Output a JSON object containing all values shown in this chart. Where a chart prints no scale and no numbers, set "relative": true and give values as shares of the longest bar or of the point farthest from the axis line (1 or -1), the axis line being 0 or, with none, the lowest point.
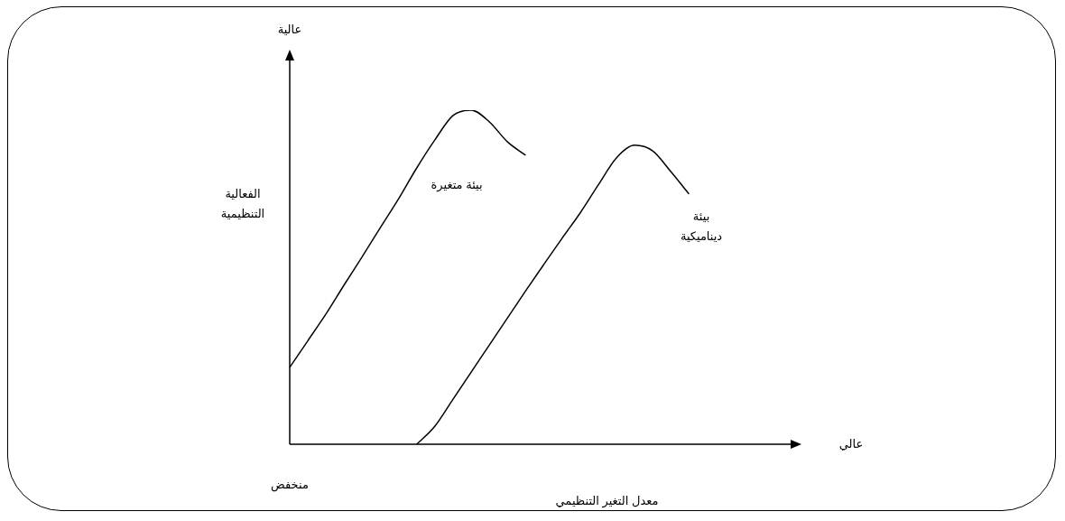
{
  "chart_data": {
    "type": "line",
    "relative": true,
    "xlabel": "معدل التغير التنظيمي",
    "ylabel": "الفعالية التنظيمية",
    "annotations": [
      "عالية",
      "منخفض",
      "عالي"
    ],
    "legend": false,
    "line_style": "solid",
    "categories": [
      null,
      null,
      null,
      null,
      null,
      null,
      null,
      null,
      null,
      null,
      null,
      null,
      null,
      null,
      null,
      null,
      null,
      null,
      null,
      null,
      null,
      null,
      null,
      null,
      null,
      null,
      null,
      null,
      null
    ],
    "series": [
      {
        "name": "بيئة متغيرة",
        "color": "#000000",
        "values": [
          0.23,
          0.31,
          0.39,
          0.477,
          0.562,
          0.649,
          0.735,
          0.827,
          0.911,
          0.984,
          1,
          0.965,
          0.905,
          0.865,
          null,
          null,
          null,
          null,
          null,
          null,
          null,
          null,
          null,
          null,
          null,
          null,
          null,
          null,
          null
        ]
      },
      {
        "name": "بيئة ديناميكية",
        "color": "#000000",
        "values": [
          null,
          null,
          null,
          null,
          null,
          null,
          null,
          0,
          0.054,
          0.135,
          0.216,
          0.297,
          0.378,
          0.459,
          0.538,
          0.616,
          0.692,
          0.776,
          0.857,
          0.895,
          0.878,
          0.816,
          0.749,
          null,
          null,
          null,
          null,
          null,
          null
        ]
      }
    ]
  }
}
